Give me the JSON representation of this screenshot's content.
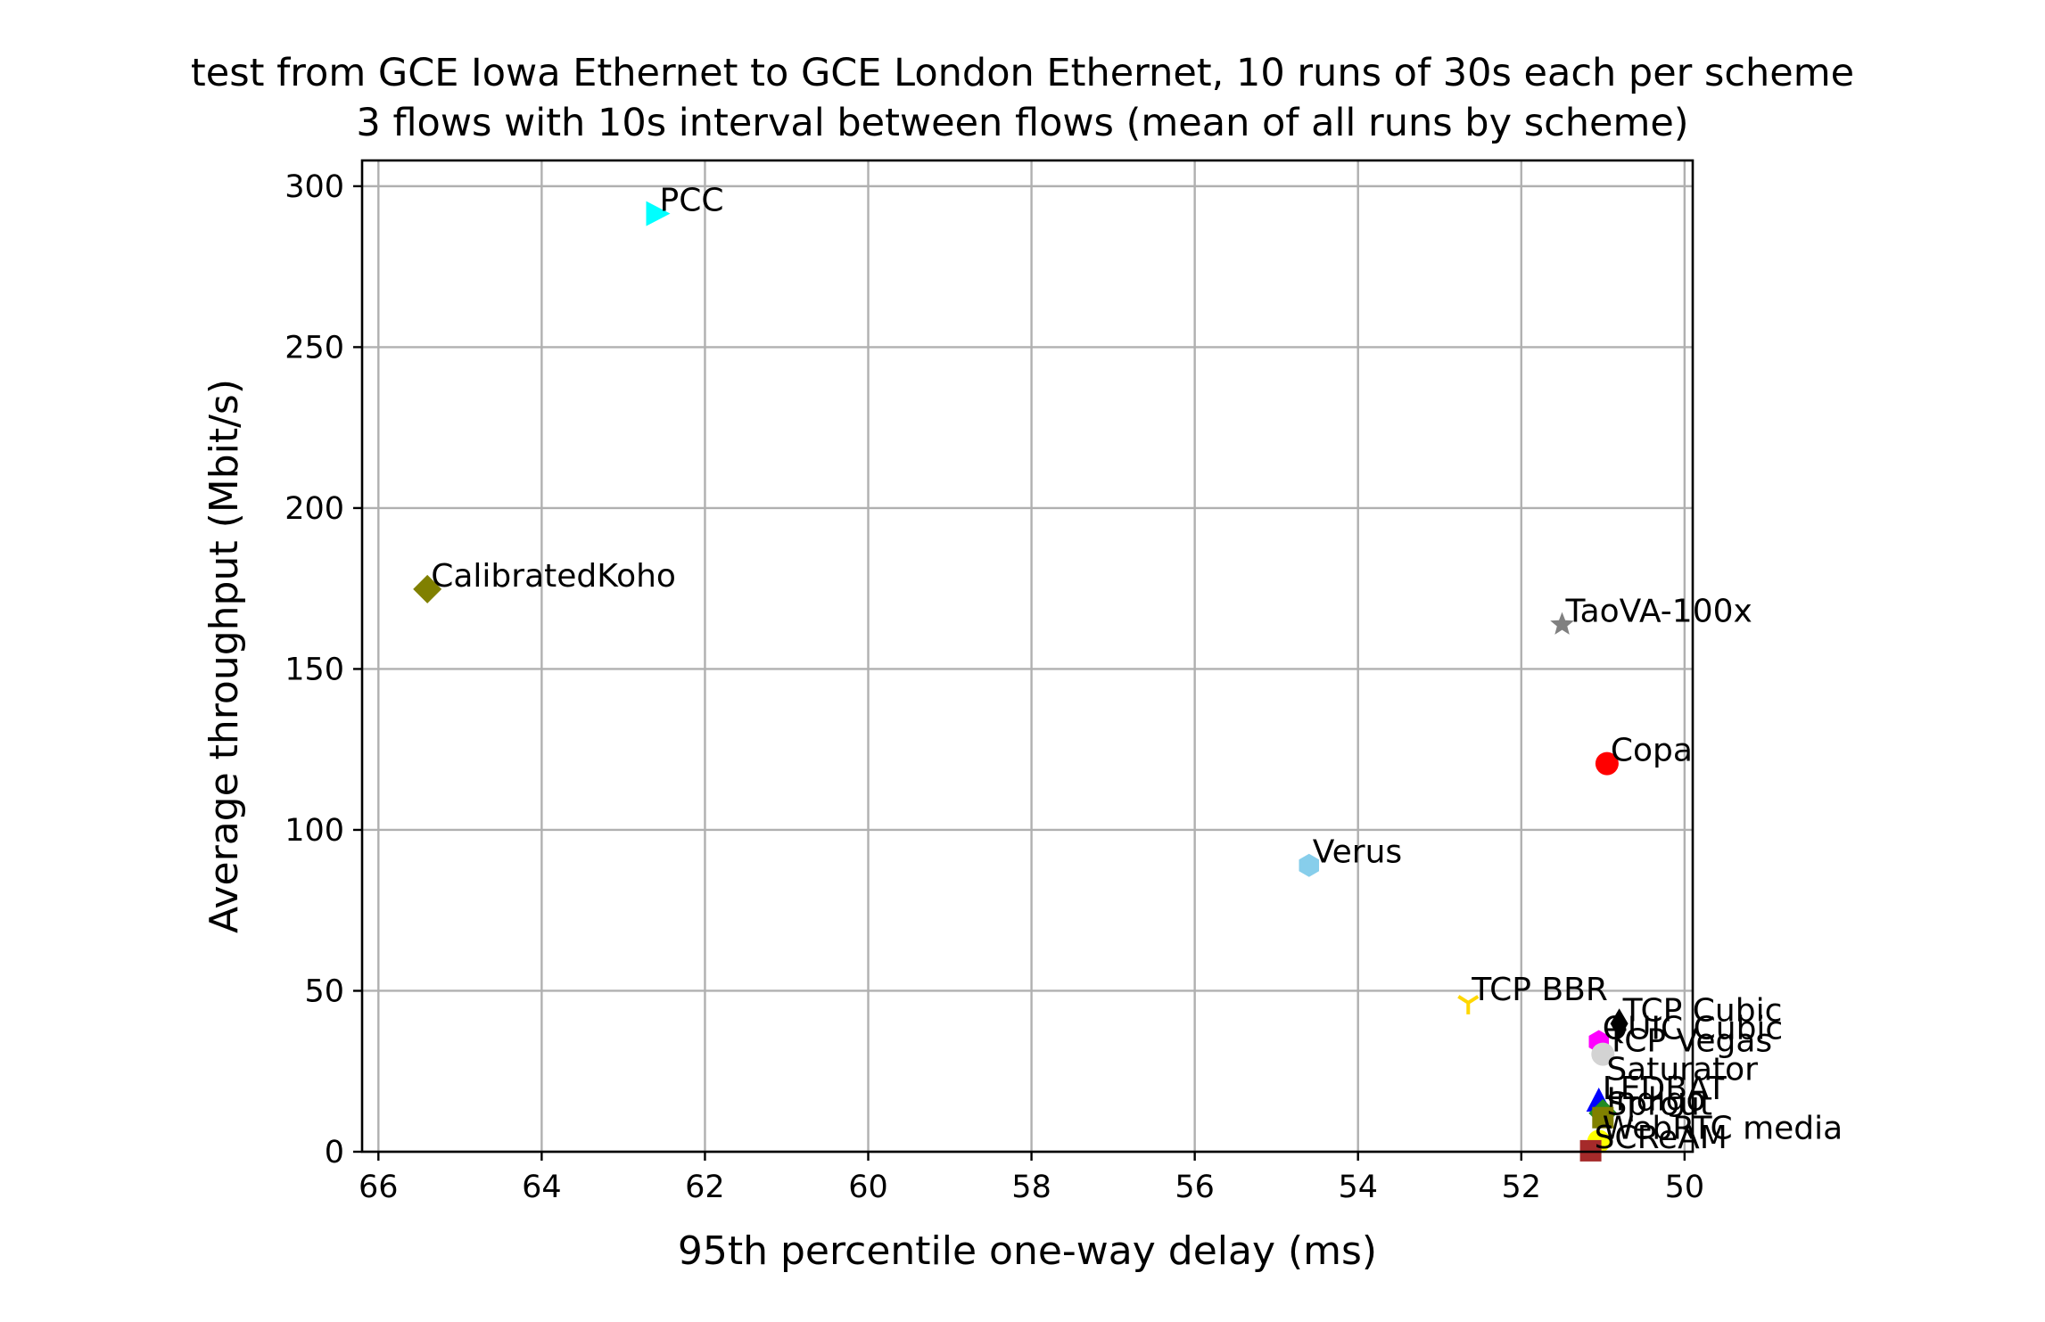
{
  "chart_data": {
    "type": "scatter",
    "title": [
      "test from GCE Iowa Ethernet to GCE London Ethernet, 10 runs of 30s each per scheme",
      "3 flows with 10s interval between flows (mean of all runs by scheme)"
    ],
    "xlabel": "95th percentile one-way delay (ms)",
    "ylabel": "Average throughput (Mbit/s)",
    "xlim": [
      66.2,
      49.9
    ],
    "ylim": [
      0,
      308
    ],
    "x_inverted": true,
    "grid": true,
    "xticks": [
      66,
      64,
      62,
      60,
      58,
      56,
      54,
      52,
      50
    ],
    "yticks": [
      0,
      50,
      100,
      150,
      200,
      250,
      300
    ],
    "points": [
      {
        "name": "PCC",
        "x": 62.6,
        "y": 291.5,
        "marker": "triangle-right",
        "color": "#00ffff"
      },
      {
        "name": "CalibratedKoho",
        "x": 65.4,
        "y": 174.8,
        "marker": "diamond",
        "color": "#808000"
      },
      {
        "name": "TaoVA-100x",
        "x": 51.5,
        "y": 163.8,
        "marker": "star",
        "color": "#808080"
      },
      {
        "name": "Copa",
        "x": 50.95,
        "y": 120.6,
        "marker": "circle",
        "color": "#ff0000"
      },
      {
        "name": "Verus",
        "x": 54.6,
        "y": 89.0,
        "marker": "hexagon",
        "color": "#87ceeb"
      },
      {
        "name": "TCP BBR",
        "x": 52.65,
        "y": 46.3,
        "marker": "tri-down",
        "color": "#ffd700"
      },
      {
        "name": "TCP Cubic",
        "x": 50.8,
        "y": 39.8,
        "marker": "thin-diamond",
        "color": "#000000"
      },
      {
        "name": "QUIC Cubic",
        "x": 51.05,
        "y": 34.2,
        "marker": "hexagon",
        "color": "#ff00ff"
      },
      {
        "name": "TCP Vegas",
        "x": 51.0,
        "y": 30.3,
        "marker": "circle",
        "color": "#d3d3d3"
      },
      {
        "name": "Saturator",
        "x": 51.0,
        "y": 21.4,
        "marker": "none",
        "color": "#000000"
      },
      {
        "name": "LEDBAT",
        "x": 51.05,
        "y": 15.5,
        "marker": "triangle-up",
        "color": "#0000ff"
      },
      {
        "name": "Indigo",
        "x": 51.0,
        "y": 12.0,
        "marker": "diamond",
        "color": "#228b22"
      },
      {
        "name": "Sprout",
        "x": 51.0,
        "y": 10.6,
        "marker": "square",
        "color": "#808000"
      },
      {
        "name": "WebRTC media",
        "x": 51.05,
        "y": 3.2,
        "marker": "circle",
        "color": "#ffff00"
      },
      {
        "name": "SCReAM",
        "x": 51.15,
        "y": 0.3,
        "marker": "square",
        "color": "#a52a2a"
      }
    ]
  }
}
